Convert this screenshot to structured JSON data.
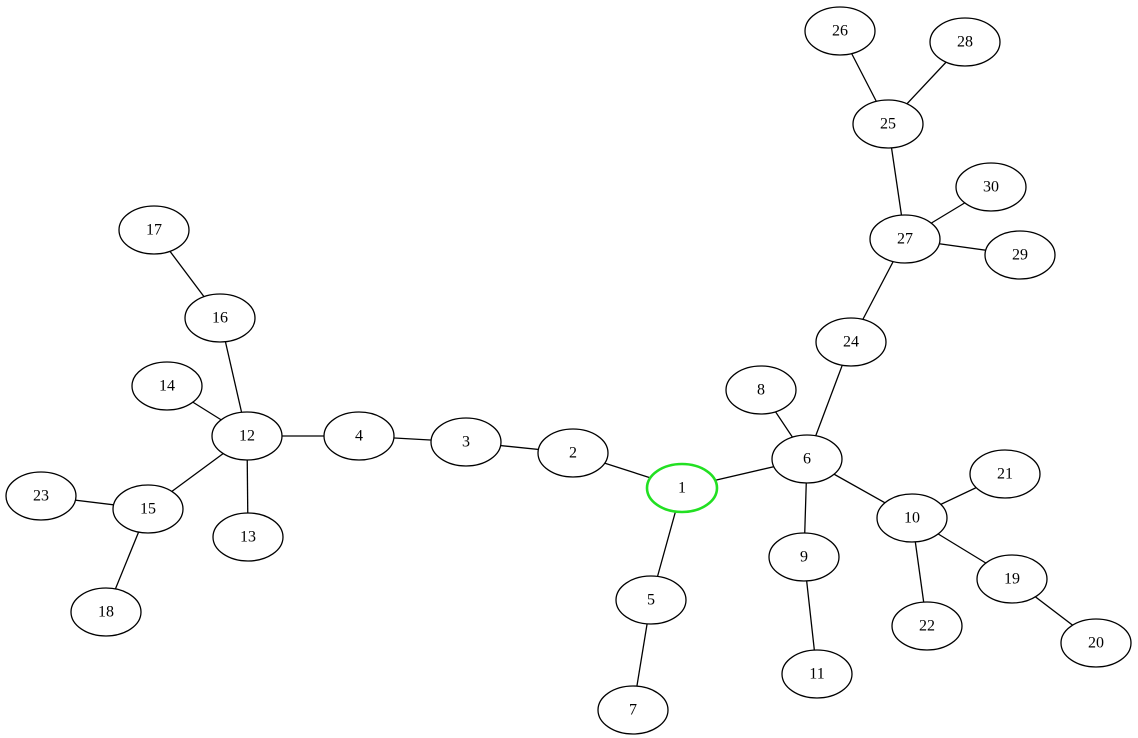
{
  "graph": {
    "nodes": [
      {
        "id": "1",
        "label": "1",
        "highlight": true
      },
      {
        "id": "2",
        "label": "2"
      },
      {
        "id": "3",
        "label": "3"
      },
      {
        "id": "4",
        "label": "4"
      },
      {
        "id": "5",
        "label": "5"
      },
      {
        "id": "6",
        "label": "6"
      },
      {
        "id": "7",
        "label": "7"
      },
      {
        "id": "8",
        "label": "8"
      },
      {
        "id": "9",
        "label": "9"
      },
      {
        "id": "10",
        "label": "10"
      },
      {
        "id": "11",
        "label": "11"
      },
      {
        "id": "12",
        "label": "12"
      },
      {
        "id": "13",
        "label": "13"
      },
      {
        "id": "14",
        "label": "14"
      },
      {
        "id": "15",
        "label": "15"
      },
      {
        "id": "16",
        "label": "16"
      },
      {
        "id": "17",
        "label": "17"
      },
      {
        "id": "18",
        "label": "18"
      },
      {
        "id": "19",
        "label": "19"
      },
      {
        "id": "20",
        "label": "20"
      },
      {
        "id": "21",
        "label": "21"
      },
      {
        "id": "22",
        "label": "22"
      },
      {
        "id": "23",
        "label": "23"
      },
      {
        "id": "24",
        "label": "24"
      },
      {
        "id": "25",
        "label": "25"
      },
      {
        "id": "26",
        "label": "26"
      },
      {
        "id": "27",
        "label": "27"
      },
      {
        "id": "28",
        "label": "28"
      },
      {
        "id": "29",
        "label": "29"
      },
      {
        "id": "30",
        "label": "30"
      }
    ],
    "edges": [
      [
        "1",
        "2"
      ],
      [
        "1",
        "5"
      ],
      [
        "1",
        "6"
      ],
      [
        "2",
        "3"
      ],
      [
        "3",
        "4"
      ],
      [
        "4",
        "12"
      ],
      [
        "5",
        "7"
      ],
      [
        "6",
        "8"
      ],
      [
        "6",
        "9"
      ],
      [
        "6",
        "10"
      ],
      [
        "6",
        "24"
      ],
      [
        "9",
        "11"
      ],
      [
        "10",
        "21"
      ],
      [
        "10",
        "22"
      ],
      [
        "10",
        "19"
      ],
      [
        "19",
        "20"
      ],
      [
        "12",
        "16"
      ],
      [
        "12",
        "14"
      ],
      [
        "12",
        "13"
      ],
      [
        "12",
        "15"
      ],
      [
        "16",
        "17"
      ],
      [
        "15",
        "23"
      ],
      [
        "15",
        "18"
      ],
      [
        "24",
        "27"
      ],
      [
        "27",
        "30"
      ],
      [
        "27",
        "29"
      ],
      [
        "27",
        "25"
      ],
      [
        "25",
        "26"
      ],
      [
        "25",
        "28"
      ]
    ],
    "colors": {
      "highlight": "#22e022",
      "stroke": "#000000",
      "background": "#ffffff"
    }
  }
}
